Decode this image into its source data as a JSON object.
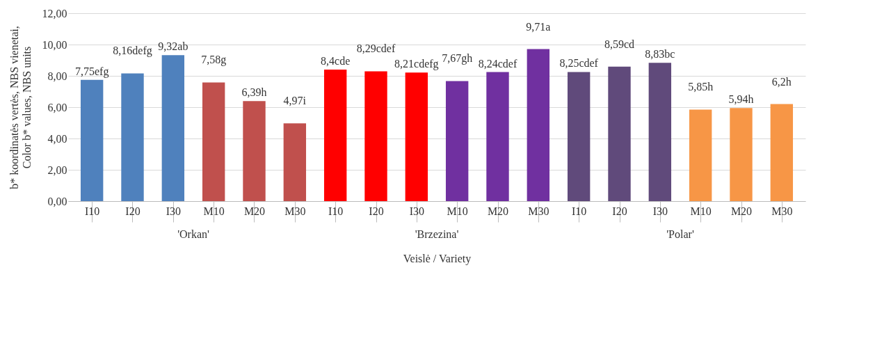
{
  "chart_data": {
    "type": "bar",
    "categories": [
      "I10",
      "I20",
      "I30",
      "M10",
      "M20",
      "M30",
      "I10",
      "I20",
      "I30",
      "M10",
      "M20",
      "M30",
      "I10",
      "I20",
      "I30",
      "M10",
      "M20",
      "M30"
    ],
    "values": [
      7.75,
      8.16,
      9.32,
      7.58,
      6.39,
      4.97,
      8.4,
      8.29,
      8.21,
      7.67,
      8.24,
      9.71,
      8.25,
      8.59,
      8.83,
      5.85,
      5.94,
      6.2
    ],
    "value_labels": [
      "7,75efg",
      "8,16defg",
      "9,32ab",
      "7,58g",
      "6,39h",
      "4,97i",
      "8,4cde",
      "8,29cdef",
      "8,21cdefg",
      "7,67gh",
      "8,24cdef",
      "9,71a",
      "8,25cdef",
      "8,59cd",
      "8,83bc",
      "5,85h",
      "5,94h",
      "6,2h"
    ],
    "colors": [
      "#4f81bd",
      "#4f81bd",
      "#4f81bd",
      "#c0504d",
      "#c0504d",
      "#c0504d",
      "#ff0000",
      "#ff0000",
      "#ff0000",
      "#7030a0",
      "#7030a0",
      "#7030a0",
      "#604a7b",
      "#604a7b",
      "#604a7b",
      "#f79646",
      "#f79646",
      "#f79646"
    ],
    "annotations": [
      "'Orkan'",
      "'Brzezina'",
      "'Polar'"
    ],
    "xlabel": "Veislė / Variety",
    "ylabel": "b* koordinatės vertės, NBS vienetai, Color b* values, NBS units",
    "ylim": [
      0,
      12
    ],
    "yticks": [
      {
        "value": 0,
        "label": "0,00"
      },
      {
        "value": 2,
        "label": "2,00"
      },
      {
        "value": 4,
        "label": "4,00"
      },
      {
        "value": 6,
        "label": "6,00"
      },
      {
        "value": 8,
        "label": "8,00"
      },
      {
        "value": 10,
        "label": "10,00"
      },
      {
        "value": 12,
        "label": "12,00"
      }
    ],
    "grid": "y"
  }
}
